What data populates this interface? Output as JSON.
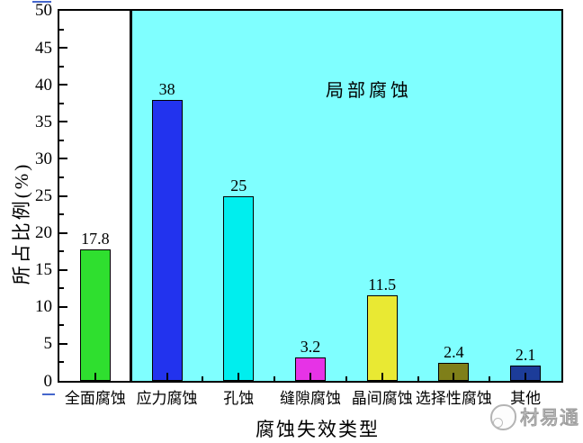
{
  "chart_data": {
    "type": "bar",
    "title": "",
    "categories": [
      "全面腐蚀",
      "应力腐蚀",
      "孔蚀",
      "缝隙腐蚀",
      "晶间腐蚀",
      "选择性腐蚀",
      "其他"
    ],
    "values": [
      17.8,
      38,
      25,
      3.2,
      11.5,
      2.4,
      2.1
    ],
    "bar_labels": [
      "17.8",
      "38",
      "25",
      "3.2",
      "11.5",
      "2.4",
      "2.1"
    ],
    "bar_colors": [
      "#2FDF2F",
      "#2233EE",
      "#00EEEE",
      "#E633E6",
      "#E9E933",
      "#7F7F19",
      "#1C3C99"
    ],
    "xlabel": "腐蚀失效类型",
    "ylabel": "所占比例(%)",
    "ylim": [
      0,
      50
    ],
    "ytick_step": 5,
    "ytick_minor_step": 2.5,
    "ytick_labels": [
      "0",
      "5",
      "10",
      "15",
      "20",
      "25",
      "30",
      "35",
      "40",
      "45",
      "50"
    ],
    "grid": false,
    "legend": null,
    "annotation": {
      "text": "局部腐蚀",
      "region_start_category_index": 1,
      "region_color": "#7FFFFF"
    }
  },
  "colors": {
    "plot_border": "#000000",
    "local_corrosion_region": "#7FFFFF",
    "link_marker_blue": "#4466CC",
    "watermark_gray": "#9A9A9A"
  },
  "watermark": {
    "text": "材易通"
  }
}
